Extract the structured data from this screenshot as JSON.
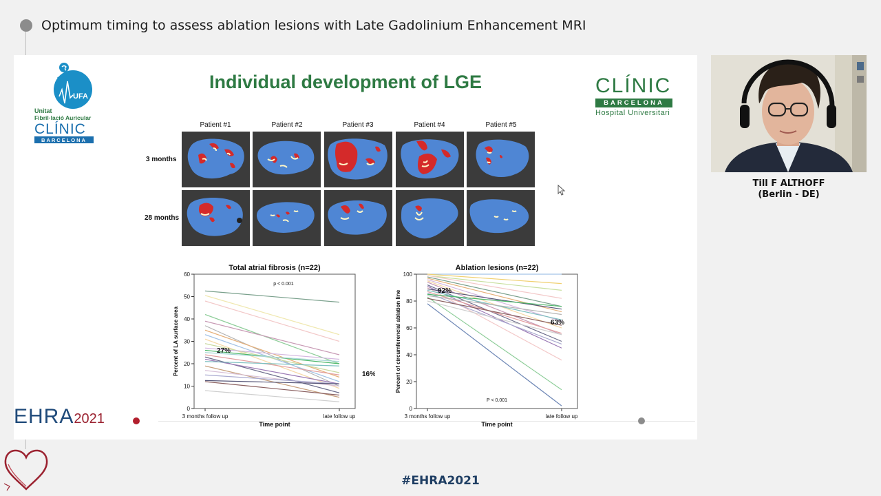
{
  "header": {
    "title": "Optimum timing to assess ablation lesions with Late Gadolinium Enhancement MRI"
  },
  "slide": {
    "title": "Individual development of LGE",
    "logo_left": {
      "ufa": "UFA",
      "line1": "Unitat",
      "line2": "Fibril·lació Auricular",
      "clinic": "CLÍNIC",
      "barcelona": "BARCELONA"
    },
    "logo_right": {
      "clinic": "CLÍNIC",
      "barcelona": "BARCELONA",
      "hospital": "Hospital Universitari"
    },
    "patients": [
      "Patient #1",
      "Patient #2",
      "Patient #3",
      "Patient #4",
      "Patient #5"
    ],
    "rows": [
      "3 months",
      "28 months"
    ],
    "brand": {
      "ehra": "EHRA",
      "year": "2021"
    }
  },
  "chart_data": [
    {
      "type": "line",
      "title": "Total atrial fibrosis (n=22)",
      "xlabel": "Time point",
      "ylabel": "Percent of LA surface area",
      "categories": [
        "3 months follow up",
        "late follow up"
      ],
      "ylim": [
        0,
        60
      ],
      "yticks": [
        0,
        10,
        20,
        30,
        40,
        50,
        60
      ],
      "annotations": {
        "pvalue": "p < 0.001",
        "left": "27%",
        "right": "16%"
      },
      "series": [
        {
          "values": [
            52.5,
            47.5
          ],
          "color": "#7aa08c"
        },
        {
          "values": [
            50.5,
            33
          ],
          "color": "#f0e8b0"
        },
        {
          "values": [
            48,
            30
          ],
          "color": "#f3c9c9"
        },
        {
          "values": [
            42,
            20
          ],
          "color": "#8fce9a"
        },
        {
          "values": [
            39,
            24
          ],
          "color": "#c89ab5"
        },
        {
          "values": [
            37,
            10
          ],
          "color": "#b3b3b3"
        },
        {
          "values": [
            35,
            14
          ],
          "color": "#e5b07a"
        },
        {
          "values": [
            33,
            12
          ],
          "color": "#a3c3e6"
        },
        {
          "values": [
            31,
            9
          ],
          "color": "#f6d9a8"
        },
        {
          "values": [
            29,
            16
          ],
          "color": "#c9d9a0"
        },
        {
          "values": [
            27,
            22
          ],
          "color": "#d4b8e0"
        },
        {
          "values": [
            26,
            20
          ],
          "color": "#4db86a"
        },
        {
          "values": [
            25,
            21
          ],
          "color": "#a9d6d6"
        },
        {
          "values": [
            24,
            15
          ],
          "color": "#e3a0a0"
        },
        {
          "values": [
            23,
            7
          ],
          "color": "#6d6d8c"
        },
        {
          "values": [
            22,
            11
          ],
          "color": "#9b7ab5"
        },
        {
          "values": [
            21,
            19
          ],
          "color": "#7dc0c0"
        },
        {
          "values": [
            19,
            5
          ],
          "color": "#c7a07d"
        },
        {
          "values": [
            17,
            10
          ],
          "color": "#d7c0d7"
        },
        {
          "values": [
            15,
            11
          ],
          "color": "#aaaad0"
        },
        {
          "values": [
            12.5,
            11
          ],
          "color": "#555577"
        },
        {
          "values": [
            12,
            6
          ],
          "color": "#8a6060"
        },
        {
          "values": [
            8,
            3
          ],
          "color": "#cfcfcf"
        }
      ]
    },
    {
      "type": "line",
      "title": "Ablation lesions (n=22)",
      "xlabel": "Time point",
      "ylabel": "Percent of circumferencial ablation line",
      "categories": [
        "3 months follow up",
        "late follow up"
      ],
      "ylim": [
        0,
        100
      ],
      "yticks": [
        0,
        20,
        40,
        60,
        80,
        100
      ],
      "annotations": {
        "pvalue": "P < 0.001",
        "left": "92%",
        "right": "63%"
      },
      "series": [
        {
          "values": [
            100,
            100
          ],
          "color": "#a3c3e6"
        },
        {
          "values": [
            100,
            93
          ],
          "color": "#f0d070"
        },
        {
          "values": [
            99,
            88
          ],
          "color": "#c9e0a0"
        },
        {
          "values": [
            99,
            82
          ],
          "color": "#f3c9c9"
        },
        {
          "values": [
            98,
            76
          ],
          "color": "#7aa08c"
        },
        {
          "values": [
            97,
            72
          ],
          "color": "#e5b07a"
        },
        {
          "values": [
            96,
            65
          ],
          "color": "#d4b8e0"
        },
        {
          "values": [
            95,
            60
          ],
          "color": "#f6d9a8"
        },
        {
          "values": [
            94,
            55
          ],
          "color": "#c89ab5"
        },
        {
          "values": [
            92,
            50
          ],
          "color": "#6d6d8c"
        },
        {
          "values": [
            91,
            45
          ],
          "color": "#9b7ab5"
        },
        {
          "values": [
            90,
            36
          ],
          "color": "#f3c9c9"
        },
        {
          "values": [
            89,
            74
          ],
          "color": "#555577"
        },
        {
          "values": [
            88,
            66
          ],
          "color": "#7dc0c0"
        },
        {
          "values": [
            87,
            56
          ],
          "color": "#e3a0a0"
        },
        {
          "values": [
            86,
            48
          ],
          "color": "#aaaad0"
        },
        {
          "values": [
            85,
            76
          ],
          "color": "#4db86a"
        },
        {
          "values": [
            84,
            70
          ],
          "color": "#b3b3b3"
        },
        {
          "values": [
            83,
            14
          ],
          "color": "#8fce9a"
        },
        {
          "values": [
            82,
            62
          ],
          "color": "#8a6060"
        },
        {
          "values": [
            80,
            55
          ],
          "color": "#cfcfcf"
        },
        {
          "values": [
            78,
            2
          ],
          "color": "#6d86b5"
        }
      ]
    }
  ],
  "speaker": {
    "name": "Till F ALTHOFF",
    "location": "(Berlin - DE)"
  },
  "footer": {
    "hashtag": "#EHRA2021"
  }
}
